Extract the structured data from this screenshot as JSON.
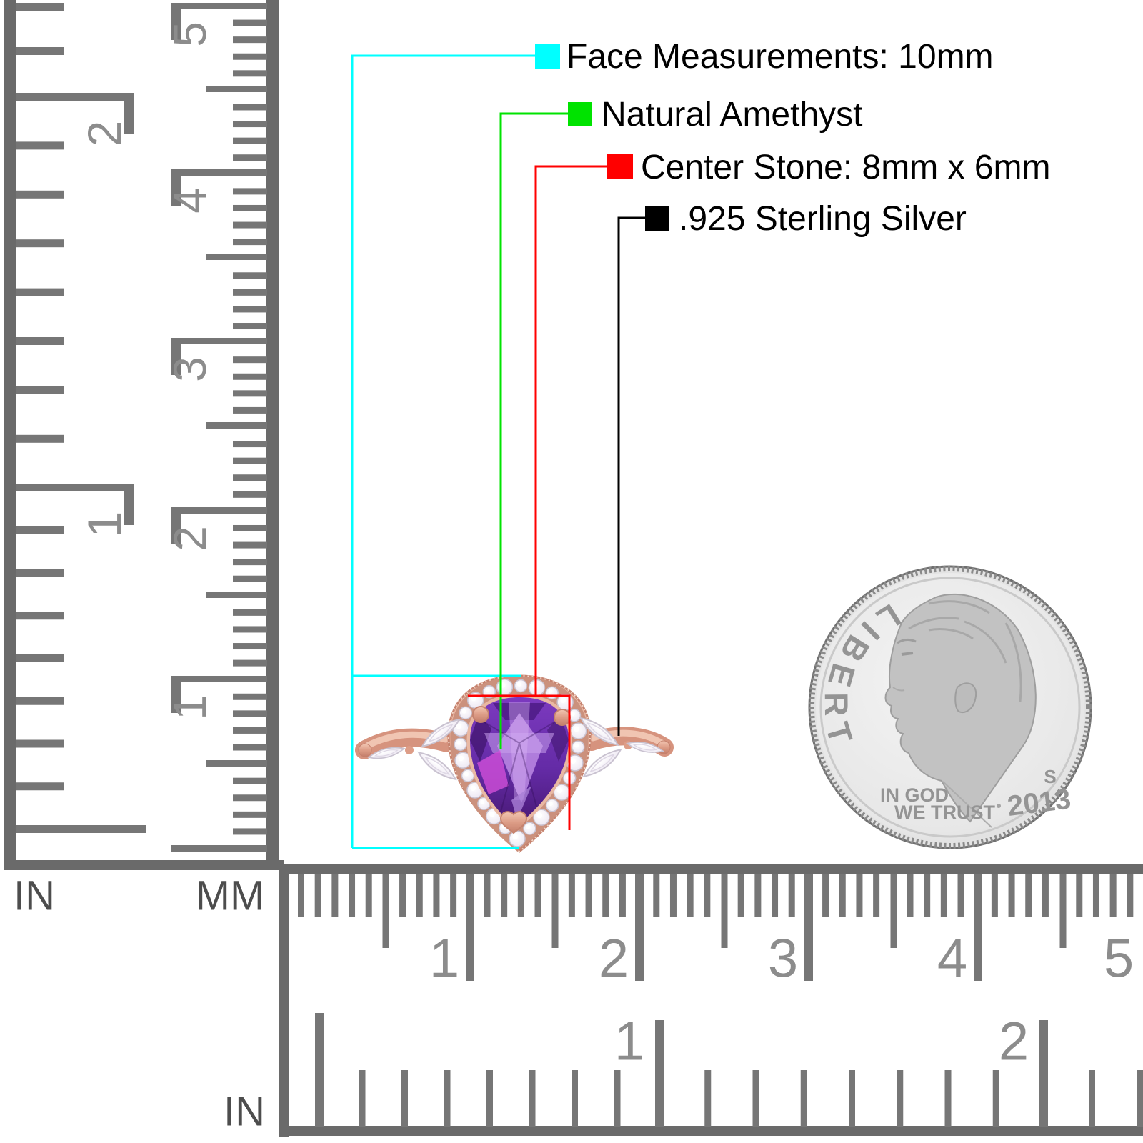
{
  "product_annotations": {
    "items": [
      {
        "id": "face-measurements",
        "label": "Face Measurements: 10mm",
        "color": "#00FFFF"
      },
      {
        "id": "stone-type",
        "label": "Natural Amethyst",
        "color": "#00E300"
      },
      {
        "id": "center-stone",
        "label": "Center Stone: 8mm x 6mm",
        "color": "#FF0000"
      },
      {
        "id": "metal",
        "label": ".925 Sterling Silver",
        "color": "#000000"
      }
    ]
  },
  "left_ruler": {
    "inch_numbers": [
      "2",
      "1"
    ],
    "cm_numbers": [
      "5",
      "4",
      "3",
      "2",
      "1"
    ],
    "inch_unit": "IN",
    "mm_unit": "MM"
  },
  "bottom_ruler": {
    "cm_numbers": [
      "1",
      "2",
      "3",
      "4",
      "5"
    ],
    "inch_numbers": [
      "1",
      "2"
    ],
    "inch_unit": "IN"
  },
  "coin": {
    "legend": "LIBERTY",
    "motto_line1": "IN GOD",
    "motto_line2": "WE TRUST",
    "mint_mark": "S",
    "year": "2013"
  },
  "colors": {
    "ruler_tick": "#767676",
    "ruler_number": "#8C8C8C",
    "ruler_unit_label": "#4D4D4D",
    "rose_gold": "#D89A84",
    "amethyst": "#5B2494",
    "coin_gray": "#9A9A9A"
  }
}
